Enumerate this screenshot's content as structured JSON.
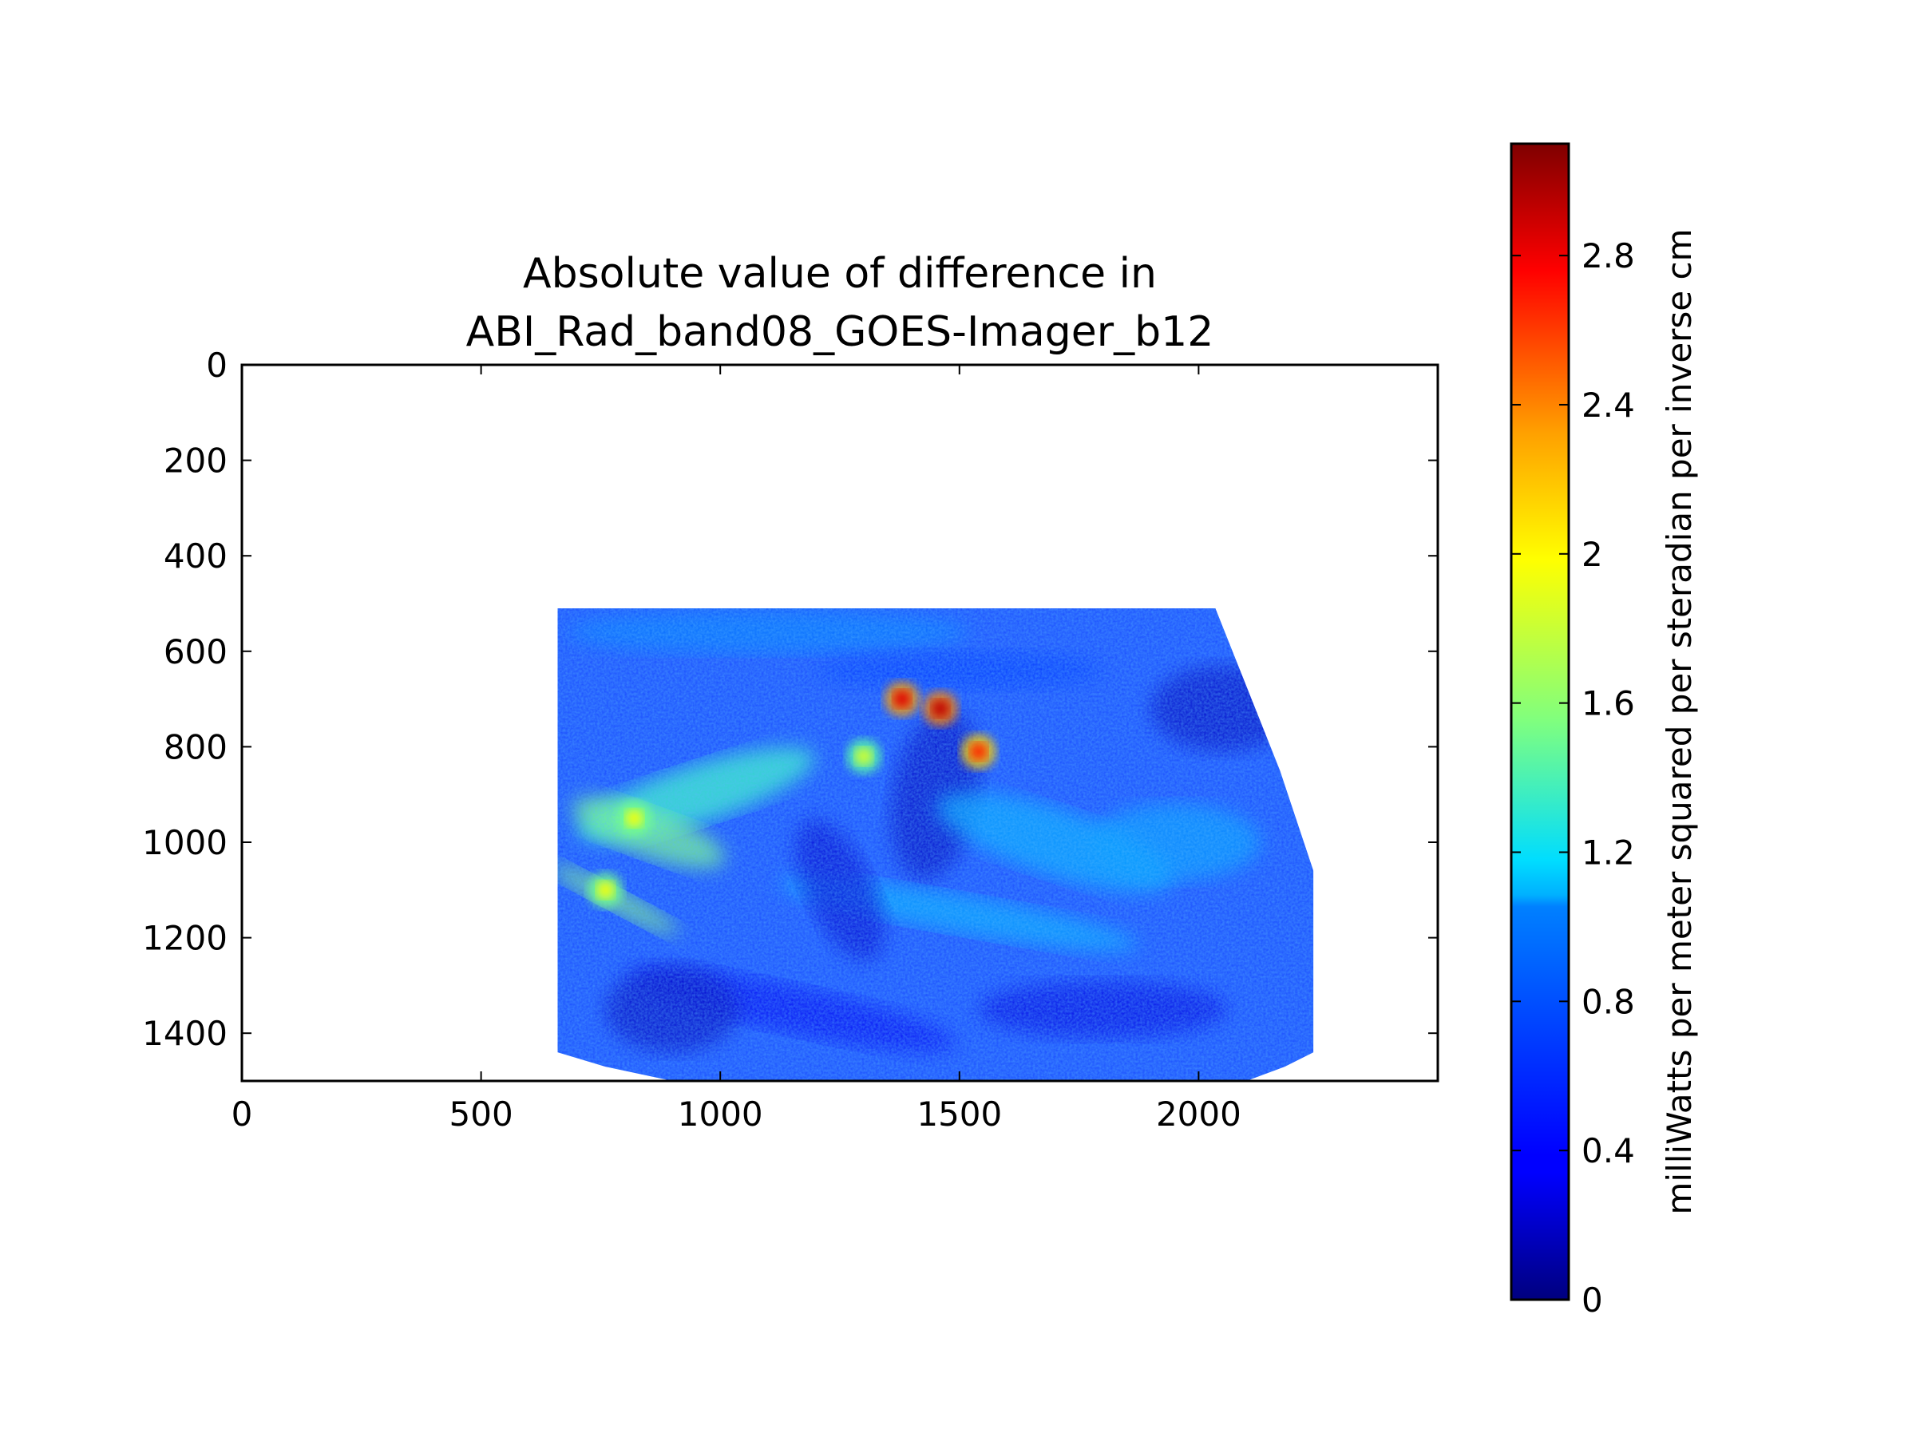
{
  "chart_data": {
    "type": "heatmap",
    "title_lines": [
      "Absolute value of difference in",
      "ABI_Rad_band08_GOES-Imager_b12"
    ],
    "xlim": [
      0,
      2500
    ],
    "ylim": [
      1500,
      0
    ],
    "x_ticks": [
      "0",
      "500",
      "1000",
      "1500",
      "2000"
    ],
    "x_tick_values": [
      0,
      500,
      1000,
      1500,
      2000
    ],
    "y_ticks": [
      "0",
      "200",
      "400",
      "600",
      "800",
      "1000",
      "1200",
      "1400"
    ],
    "y_tick_values": [
      0,
      200,
      400,
      600,
      800,
      1000,
      1200,
      1400
    ],
    "data_extent": {
      "x_min": 660,
      "x_max": 2240,
      "y_top": 510,
      "y_bottom": 1500,
      "boundary_polygon": [
        [
          660,
          510
        ],
        [
          2035,
          510
        ],
        [
          2170,
          850
        ],
        [
          2240,
          1060
        ],
        [
          2240,
          1440
        ],
        [
          2180,
          1470
        ],
        [
          2100,
          1500
        ],
        [
          900,
          1500
        ],
        [
          760,
          1470
        ],
        [
          660,
          1440
        ]
      ]
    },
    "hot_spots": [
      {
        "x": 1380,
        "y": 700,
        "value": 2.8
      },
      {
        "x": 1460,
        "y": 720,
        "value": 2.9
      },
      {
        "x": 1540,
        "y": 810,
        "value": 2.6
      },
      {
        "x": 1300,
        "y": 820,
        "value": 1.8
      },
      {
        "x": 820,
        "y": 950,
        "value": 1.9
      },
      {
        "x": 760,
        "y": 1100,
        "value": 1.9
      }
    ],
    "colorbar": {
      "colormap": "jet",
      "min": 0,
      "max": 3.1,
      "ticks": [
        "0",
        "0.4",
        "0.8",
        "1.2",
        "1.6",
        "2",
        "2.4",
        "2.8"
      ],
      "tick_values": [
        0,
        0.4,
        0.8,
        1.2,
        1.6,
        2.0,
        2.4,
        2.8
      ],
      "label": "milliWatts per meter squared per steradian per inverse cm"
    },
    "grid": false
  }
}
